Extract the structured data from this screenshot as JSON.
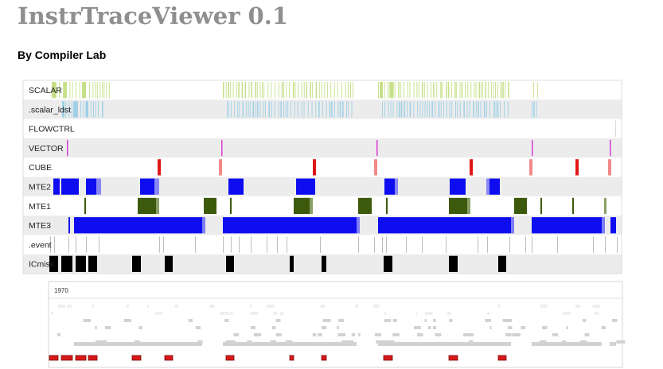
{
  "app": {
    "title": "InstrTraceViewer 0.1",
    "subtitle": "By Compiler Lab"
  },
  "tracks": [
    {
      "label": "SCALAR",
      "color": "#c6e08a",
      "kind": "dense",
      "shaded": false
    },
    {
      "label": ".scalar_ldst",
      "color": "#9fd0e6",
      "kind": "dense",
      "shaded": true
    },
    {
      "label": "FLOWCTRL",
      "color": "#d8d8d8",
      "kind": "sparse",
      "shaded": false
    },
    {
      "label": "VECTOR",
      "color": "#d73fd2",
      "kind": "spikes",
      "shaded": true
    },
    {
      "label": "CUBE",
      "color": "#e01616",
      "alt_color": "#f28a8a",
      "kind": "spikes",
      "shaded": false
    },
    {
      "label": "MTE2",
      "color": "#0d0df0",
      "alt_color": "#8888f5",
      "kind": "blocks",
      "shaded": true
    },
    {
      "label": "MTE1",
      "color": "#3d5a0c",
      "alt_color": "#8aa067",
      "kind": "blocks",
      "shaded": false
    },
    {
      "label": "MTE3",
      "color": "#0d0df0",
      "alt_color": "#7d7df3",
      "kind": "blocks",
      "shaded": true
    },
    {
      "label": ".event",
      "color": "#bdbdbd",
      "kind": "sparse",
      "shaded": false
    },
    {
      "label": "ICmiss",
      "color": "#000000",
      "kind": "blocks",
      "shaded": true
    }
  ],
  "overview": {
    "start_label": "1970",
    "bar_color": "#d2d2d2",
    "marker_color": "#d81818"
  },
  "colors": {
    "band_shade": "#ececec",
    "border": "#dcdcdc"
  }
}
